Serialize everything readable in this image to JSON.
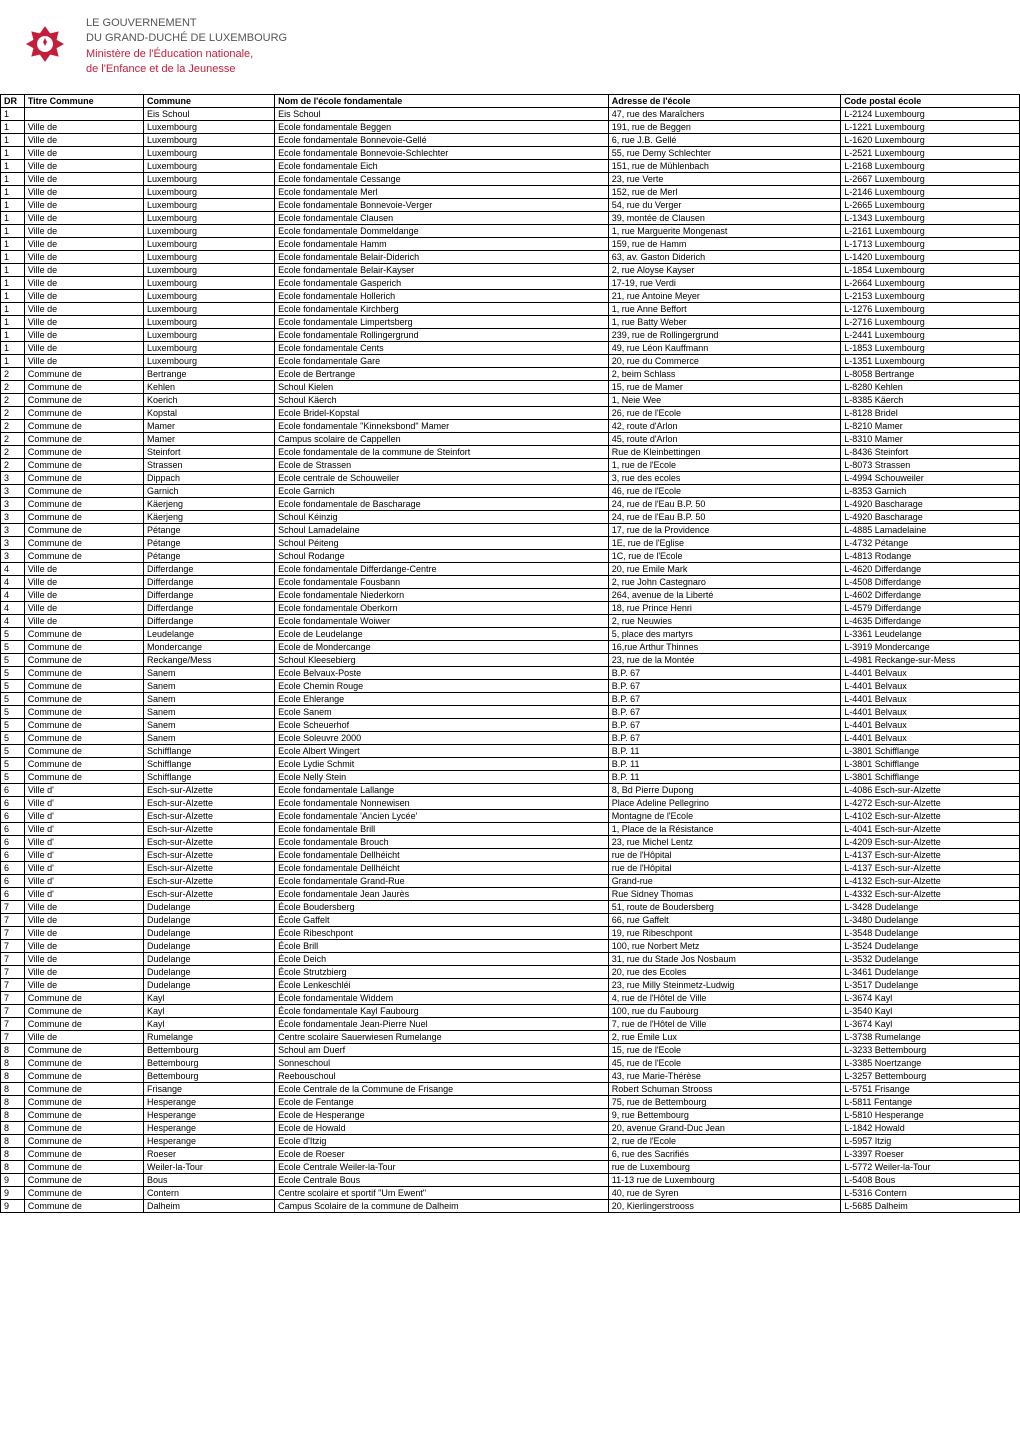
{
  "header": {
    "line1": "LE GOUVERNEMENT",
    "line2": "DU GRAND-DUCHÉ DE LUXEMBOURG",
    "line3": "Ministère de l'Éducation nationale,",
    "line4": "de l'Enfance et de la Jeunesse"
  },
  "columns": [
    "DR",
    "Titre Commune",
    "Commune",
    "Nom de l'école fondamentale",
    "Adresse de l'école",
    "Code postal école"
  ],
  "rows": [
    [
      "1",
      "",
      "Eis Schoul",
      "Eis Schoul",
      "47, rue des Maraîchers",
      "L-2124 Luxembourg"
    ],
    [
      "1",
      "Ville de",
      "Luxembourg",
      "Ecole fondamentale Beggen",
      "191, rue de Beggen",
      "L-1221 Luxembourg"
    ],
    [
      "1",
      "Ville de",
      "Luxembourg",
      "Ecole fondamentale Bonnevoie-Gellé",
      "6, rue J.B. Gellé",
      "L-1620 Luxembourg"
    ],
    [
      "1",
      "Ville de",
      "Luxembourg",
      "Ecole fondamentale Bonnevoie-Schlechter",
      "55, rue Demy Schlechter",
      "L-2521 Luxembourg"
    ],
    [
      "1",
      "Ville de",
      "Luxembourg",
      "Ecole fondamentale Eich",
      "151, rue de Mühlenbach",
      "L-2168 Luxembourg"
    ],
    [
      "1",
      "Ville de",
      "Luxembourg",
      "Ecole fondamentale Cessange",
      "23, rue Verte",
      "L-2667 Luxembourg"
    ],
    [
      "1",
      "Ville de",
      "Luxembourg",
      "Ecole fondamentale Merl",
      "152, rue de Merl",
      "L-2146 Luxembourg"
    ],
    [
      "1",
      "Ville de",
      "Luxembourg",
      "Ecole fondamentale Bonnevoie-Verger",
      "54, rue du Verger",
      "L-2665 Luxembourg"
    ],
    [
      "1",
      "Ville de",
      "Luxembourg",
      "Ecole fondamentale Clausen",
      "39, montée de Clausen",
      "L-1343 Luxembourg"
    ],
    [
      "1",
      "Ville de",
      "Luxembourg",
      "Ecole fondamentale Dommeldange",
      "1, rue Marguerite Mongenast",
      "L-2161 Luxembourg"
    ],
    [
      "1",
      "Ville de",
      "Luxembourg",
      "Ecole fondamentale Hamm",
      "159, rue de Hamm",
      "L-1713 Luxembourg"
    ],
    [
      "1",
      "Ville de",
      "Luxembourg",
      "Ecole fondamentale Belair-Diderich",
      "63, av. Gaston Diderich",
      "L-1420 Luxembourg"
    ],
    [
      "1",
      "Ville de",
      "Luxembourg",
      "Ecole fondamentale Belair-Kayser",
      "2, rue Aloyse Kayser",
      "L-1854 Luxembourg"
    ],
    [
      "1",
      "Ville de",
      "Luxembourg",
      "Ecole fondamentale Gasperich",
      "17-19, rue Verdi",
      "L-2664 Luxembourg"
    ],
    [
      "1",
      "Ville de",
      "Luxembourg",
      "Ecole fondamentale Hollerich",
      "21, rue Antoine Meyer",
      "L-2153 Luxembourg"
    ],
    [
      "1",
      "Ville de",
      "Luxembourg",
      "Ecole fondamentale Kirchberg",
      "1, rue Anne Beffort",
      "L-1276 Luxembourg"
    ],
    [
      "1",
      "Ville de",
      "Luxembourg",
      "Ecole fondamentale Limpertsberg",
      "1, rue Batty Weber",
      "L-2716 Luxembourg"
    ],
    [
      "1",
      "Ville de",
      "Luxembourg",
      "Ecole fondamentale Rollingergrund",
      "239, rue de Rollingergrund",
      "L-2441 Luxembourg"
    ],
    [
      "1",
      "Ville de",
      "Luxembourg",
      "Ecole fondamentale Cents",
      "49, rue Léon Kauffmann",
      "L-1853 Luxembourg"
    ],
    [
      "1",
      "Ville de",
      "Luxembourg",
      "Ecole fondamentale Gare",
      "20, rue du Commerce",
      "L-1351 Luxembourg"
    ],
    [
      "2",
      "Commune de",
      "Bertrange",
      "Ecole de Bertrange",
      "2, beim Schlass",
      "L-8058 Bertrange"
    ],
    [
      "2",
      "Commune de",
      "Kehlen",
      "Schoul Kielen",
      "15, rue de Mamer",
      "L-8280 Kehlen"
    ],
    [
      "2",
      "Commune de",
      "Koerich",
      "Schoul Käerch",
      "1, Neie Wee",
      "L-8385 Käerch"
    ],
    [
      "2",
      "Commune de",
      "Kopstal",
      "Ecole Bridel-Kopstal",
      "26, rue de l'Ecole",
      "L-8128 Bridel"
    ],
    [
      "2",
      "Commune de",
      "Mamer",
      "Ecole fondamentale \"Kinneksbond\" Mamer",
      "42, route d'Arlon",
      "L-8210 Mamer"
    ],
    [
      "2",
      "Commune de",
      "Mamer",
      "Campus scolaire de Cappellen",
      "45, route d'Arlon",
      "L-8310 Mamer"
    ],
    [
      "2",
      "Commune de",
      "Steinfort",
      "Ecole fondamentale de la commune de Steinfort",
      "Rue de Kleinbettingen",
      "L-8436 Steinfort"
    ],
    [
      "2",
      "Commune de",
      "Strassen",
      "Ecole de Strassen",
      "1, rue de l'Ecole",
      "L-8073 Strassen"
    ],
    [
      "3",
      "Commune de",
      "Dippach",
      "Ecole centrale de Schouweiler",
      "3, rue des ecoles",
      "L-4994 Schouweiler"
    ],
    [
      "3",
      "Commune de",
      "Garnich",
      "Ecole Garnich",
      "46, rue de l'Ecole",
      "L-8353 Garnich"
    ],
    [
      "3",
      "Commune de",
      "Käerjeng",
      "Ecole fondamentale de Bascharage",
      "24, rue de l'Eau  B.P. 50",
      "L-4920 Bascharage"
    ],
    [
      "3",
      "Commune de",
      "Käerjeng",
      "Schoul Kéinzig",
      "24, rue de l'Eau  B.P. 50",
      "L-4920 Bascharage"
    ],
    [
      "3",
      "Commune de",
      "Pétange",
      "Schoul Lamadelaine",
      "17, rue de la Providence",
      "L-4885 Lamadelaine"
    ],
    [
      "3",
      "Commune de",
      "Pétange",
      "Schoul Péiteng",
      "1E, rue de l'Eglise",
      "L-4732 Pétange"
    ],
    [
      "3",
      "Commune de",
      "Pétange",
      "Schoul Rodange",
      "1C, rue de l'Ecole",
      "L-4813 Rodange"
    ],
    [
      "4",
      "Ville de",
      "Differdange",
      "Ecole fondamentale Differdange-Centre",
      "20, rue Emile Mark",
      "L-4620 Differdange"
    ],
    [
      "4",
      "Ville de",
      "Differdange",
      "Ecole fondamentale Fousbann",
      "2, rue John Castegnaro",
      "L-4508 Differdange"
    ],
    [
      "4",
      "Ville de",
      "Differdange",
      "Ecole fondamentale Niederkorn",
      "264, avenue de la Liberté",
      "L-4602 Differdange"
    ],
    [
      "4",
      "Ville de",
      "Differdange",
      "Ecole fondamentale Oberkorn",
      "18, rue Prince Henri",
      "L-4579 Differdange"
    ],
    [
      "4",
      "Ville de",
      "Differdange",
      "Ecole fondamentale Woiwer",
      "2, rue Neuwies",
      "L-4635 Differdange"
    ],
    [
      "5",
      "Commune de",
      "Leudelange",
      "Ecole de Leudelange",
      "5, place des martyrs",
      "L-3361 Leudelange"
    ],
    [
      "5",
      "Commune de",
      "Mondercange",
      "Ecole de Mondercange",
      "16,rue Arthur Thinnes",
      "L-3919 Mondercange"
    ],
    [
      "5",
      "Commune de",
      "Reckange/Mess",
      "Schoul Kleesebierg",
      "23, rue de la Montée",
      "L-4981 Reckange-sur-Mess"
    ],
    [
      "5",
      "Commune de",
      "Sanem",
      "Ecole Belvaux-Poste",
      "B.P. 67",
      "L-4401 Belvaux"
    ],
    [
      "5",
      "Commune de",
      "Sanem",
      "Ecole Chemin Rouge",
      "B.P. 67",
      "L-4401 Belvaux"
    ],
    [
      "5",
      "Commune de",
      "Sanem",
      "Ecole Ehlerange",
      "B.P. 67",
      "L-4401 Belvaux"
    ],
    [
      "5",
      "Commune de",
      "Sanem",
      "Ecole Sanem",
      "B.P. 67",
      "L-4401 Belvaux"
    ],
    [
      "5",
      "Commune de",
      "Sanem",
      "Ecole Scheuerhof",
      "B.P. 67",
      "L-4401 Belvaux"
    ],
    [
      "5",
      "Commune de",
      "Sanem",
      "Ecole Soleuvre 2000",
      "B.P. 67",
      "L-4401 Belvaux"
    ],
    [
      "5",
      "Commune de",
      "Schifflange",
      "Ecole Albert Wingert",
      "B.P. 11",
      "L-3801 Schifflange"
    ],
    [
      "5",
      "Commune de",
      "Schifflange",
      "Ecole Lydie Schmit",
      "B.P. 11",
      "L-3801 Schifflange"
    ],
    [
      "5",
      "Commune de",
      "Schifflange",
      "Ecole Nelly Stein",
      "B.P. 11",
      "L-3801 Schifflange"
    ],
    [
      "6",
      "Ville d'",
      "Esch-sur-Alzette",
      "Ecole fondamentale Lallange",
      "8, Bd Pierre Dupong",
      "L-4086 Esch-sur-Alzette"
    ],
    [
      "6",
      "Ville d'",
      "Esch-sur-Alzette",
      "Ecole fondamentale Nonnewisen",
      "Place Adeline Pellegrino",
      "L-4272 Esch-sur-Alzette"
    ],
    [
      "6",
      "Ville d'",
      "Esch-sur-Alzette",
      "Ecole fondamentale 'Ancien Lycée'",
      "Montagne de l'Ecole",
      "L-4102 Esch-sur-Alzette"
    ],
    [
      "6",
      "Ville d'",
      "Esch-sur-Alzette",
      "Ecole fondamentale Brill",
      "1, Place de la Résistance",
      "L-4041 Esch-sur-Alzette"
    ],
    [
      "6",
      "Ville d'",
      "Esch-sur-Alzette",
      "Ecole fondamentale Brouch",
      "23, rue Michel Lentz",
      "L-4209 Esch-sur-Alzette"
    ],
    [
      "6",
      "Ville d'",
      "Esch-sur-Alzette",
      "Ecole fondamentale Dellhéicht",
      "rue de l'Hôpital",
      "L-4137 Esch-sur-Alzette"
    ],
    [
      "6",
      "Ville d'",
      "Esch-sur-Alzette",
      "Ecole fondamentale Dellhéicht",
      "rue de l'Hôpital",
      "L-4137 Esch-sur-Alzette"
    ],
    [
      "6",
      "Ville d'",
      "Esch-sur-Alzette",
      "Ecole fondamentale Grand-Rue",
      "Grand-rue",
      "L-4132 Esch-sur-Alzette"
    ],
    [
      "6",
      "Ville d'",
      "Esch-sur-Alzette",
      "Ecole fondamentale Jean Jaurès",
      "Rue Sidney Thomas",
      "L-4332 Esch-sur-Alzette"
    ],
    [
      "7",
      "Ville de",
      "Dudelange",
      "École Boudersberg",
      "51, route de Boudersberg",
      "L-3428 Dudelange"
    ],
    [
      "7",
      "Ville de",
      "Dudelange",
      "École Gaffelt",
      "66, rue Gaffelt",
      "L-3480 Dudelange"
    ],
    [
      "7",
      "Ville de",
      "Dudelange",
      "École Ribeschpont",
      "19, rue Ribeschpont",
      "L-3548 Dudelange"
    ],
    [
      "7",
      "Ville de",
      "Dudelange",
      "École Brill",
      "100, rue Norbert Metz",
      "L-3524 Dudelange"
    ],
    [
      "7",
      "Ville de",
      "Dudelange",
      "École Deich",
      "31, rue du Stade Jos Nosbaum",
      "L-3532 Dudelange"
    ],
    [
      "7",
      "Ville de",
      "Dudelange",
      "École Strutzbierg",
      "20, rue des Ecoles",
      "L-3461 Dudelange"
    ],
    [
      "7",
      "Ville de",
      "Dudelange",
      "École Lenkeschléi",
      "23, rue Milly Steinmetz-Ludwig",
      "L-3517 Dudelange"
    ],
    [
      "7",
      "Commune de",
      "Kayl",
      "École fondamentale Widdem",
      "4, rue de l'Hôtel de Ville",
      "L-3674 Kayl"
    ],
    [
      "7",
      "Commune de",
      "Kayl",
      "École fondamentale Kayl Faubourg",
      "100, rue du Faubourg",
      "L-3540 Kayl"
    ],
    [
      "7",
      "Commune de",
      "Kayl",
      "École fondamentale Jean-Pierre Nuel",
      "7, rue de l'Hôtel de Ville",
      "L-3674 Kayl"
    ],
    [
      "7",
      "Ville de",
      "Rumelange",
      "Centre scolaire Sauerwiesen Rumelange",
      "2, rue Emile Lux",
      "L-3738 Rumelange"
    ],
    [
      "8",
      "Commune de",
      "Bettembourg",
      "Schoul am Duerf",
      "15, rue de l'Ecole",
      "L-3233 Bettembourg"
    ],
    [
      "8",
      "Commune de",
      "Bettembourg",
      "Sonneschoul",
      "45, rue de l'Ecole",
      "L-3385 Noertzange"
    ],
    [
      "8",
      "Commune de",
      "Bettembourg",
      "Reebouschoul",
      "43, rue Marie-Thérèse",
      "L-3257 Bettembourg"
    ],
    [
      "8",
      "Commune de",
      "Frisange",
      "Ecole Centrale de la Commune de Frisange",
      "Robert Schuman Strooss",
      "L-5751 Frisange"
    ],
    [
      "8",
      "Commune de",
      "Hesperange",
      "Ecole de Fentange",
      "75, rue de Bettembourg",
      "L-5811 Fentange"
    ],
    [
      "8",
      "Commune de",
      "Hesperange",
      "Ecole de Hesperange",
      "9, rue Bettembourg",
      "L-5810 Hesperange"
    ],
    [
      "8",
      "Commune de",
      "Hesperange",
      "Ecole de Howald",
      "20, avenue Grand-Duc Jean",
      "L-1842 Howald"
    ],
    [
      "8",
      "Commune de",
      "Hesperange",
      "Ecole d'Itzig",
      "2, rue de l'Ecole",
      "L-5957 Itzig"
    ],
    [
      "8",
      "Commune de",
      "Roeser",
      "Ecole de Roeser",
      "6, rue des Sacrifiés",
      "L-3397 Roeser"
    ],
    [
      "8",
      "Commune de",
      "Weiler-la-Tour",
      "Ecole Centrale Weiler-la-Tour",
      "rue de Luxembourg",
      "L-5772 Weiler-la-Tour"
    ],
    [
      "9",
      "Commune de",
      "Bous",
      "Ecole Centrale Bous",
      "11-13 rue de Luxembourg",
      "L-5408 Bous"
    ],
    [
      "9",
      "Commune de",
      "Contern",
      "Centre scolaire et sportif \"Um Ewent\"",
      "40, rue de Syren",
      "L-5316 Contern"
    ],
    [
      "9",
      "Commune de",
      "Dalheim",
      "Campus Scolaire de la commune de Dalheim",
      "20, Kierlingerstrooss",
      "L-5685 Dalheim"
    ]
  ]
}
